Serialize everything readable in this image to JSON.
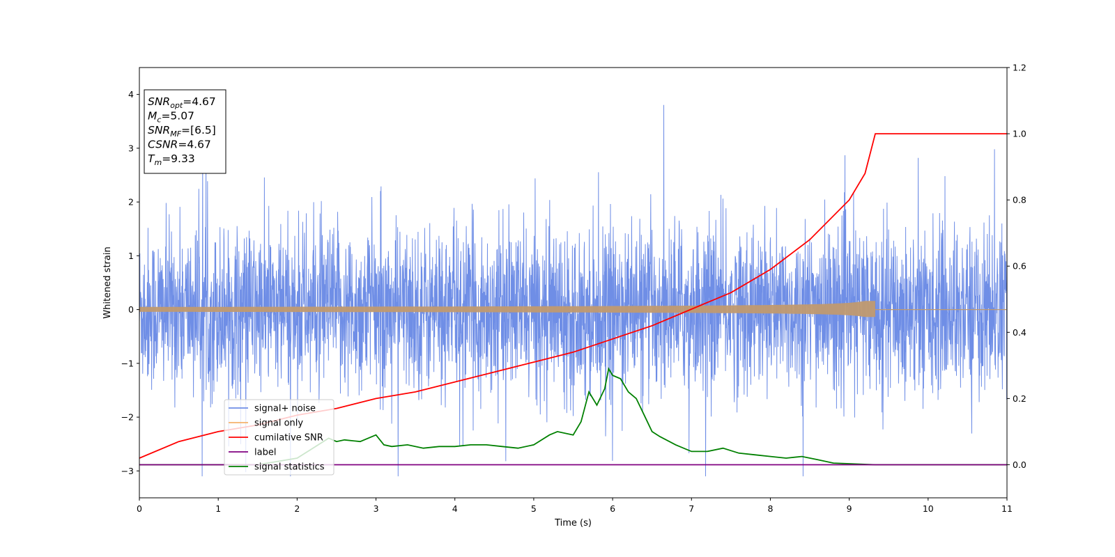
{
  "chart_data": {
    "type": "line",
    "xlabel": "Time (s)",
    "ylabel": "Whitened strain",
    "xlim": [
      0,
      11
    ],
    "ylim": [
      -3.5,
      4.5
    ],
    "y2lim": [
      -0.1,
      1.2
    ],
    "x_ticks": [
      "0",
      "1",
      "2",
      "3",
      "4",
      "5",
      "6",
      "7",
      "8",
      "9",
      "10",
      "11"
    ],
    "y_ticks": [
      "−3",
      "−2",
      "−1",
      "0",
      "1",
      "2",
      "3",
      "4"
    ],
    "y2_ticks": [
      "0.0",
      "0.2",
      "0.4",
      "0.6",
      "0.8",
      "1.0",
      "1.2"
    ],
    "grid": false,
    "legend_position": "lower-left",
    "info_box": {
      "lines": [
        {
          "name": "SNR",
          "sub": "opt",
          "value": "=4.67"
        },
        {
          "name": "M",
          "sub": "c",
          "value": "=5.07"
        },
        {
          "name": "SNR",
          "sub": "MF",
          "value": "=[6.5]"
        },
        {
          "name": "CSNR",
          "sub": "",
          "value": "=4.67"
        },
        {
          "name": "T",
          "sub": "m",
          "value": "=9.33"
        }
      ]
    },
    "series": [
      {
        "name": "signal+ noise",
        "axis": "left",
        "color": "#6f8ee6",
        "note_values": "random noise, std approx 0.9, range approx -3.1 to 4.2 over t=0..11"
      },
      {
        "name": "signal only",
        "axis": "left",
        "color": "#f4b26b",
        "merge_time": 9.33,
        "peak_amplitude": 0.45
      },
      {
        "name": "cumilative SNR",
        "axis": "right",
        "color": "#ff0000",
        "x": [
          0,
          0.5,
          1,
          1.5,
          2,
          2.5,
          3,
          3.5,
          4,
          4.5,
          5,
          5.5,
          6,
          6.5,
          7,
          7.5,
          8,
          8.5,
          9,
          9.2,
          9.33,
          11
        ],
        "values": [
          0.02,
          0.07,
          0.1,
          0.12,
          0.15,
          0.17,
          0.2,
          0.22,
          0.25,
          0.28,
          0.31,
          0.34,
          0.38,
          0.42,
          0.47,
          0.52,
          0.59,
          0.68,
          0.8,
          0.88,
          1.0,
          1.0
        ]
      },
      {
        "name": "label",
        "axis": "right",
        "color": "#800080",
        "x": [
          0,
          11
        ],
        "values": [
          0,
          0
        ]
      },
      {
        "name": "signal statistics",
        "axis": "right",
        "color": "#008000",
        "x": [
          0,
          1,
          1.5,
          2,
          2.2,
          2.4,
          2.5,
          2.6,
          2.8,
          3,
          3.1,
          3.2,
          3.4,
          3.6,
          3.8,
          4,
          4.2,
          4.4,
          4.6,
          4.8,
          5,
          5.2,
          5.3,
          5.5,
          5.6,
          5.7,
          5.8,
          5.9,
          5.95,
          6,
          6.1,
          6.2,
          6.3,
          6.4,
          6.5,
          6.6,
          6.8,
          7,
          7.2,
          7.4,
          7.6,
          7.8,
          8,
          8.2,
          8.4,
          8.6,
          8.8,
          9,
          9.33,
          10,
          11
        ],
        "values": [
          0.0,
          0.0,
          0.0,
          0.02,
          0.05,
          0.08,
          0.07,
          0.075,
          0.07,
          0.09,
          0.06,
          0.055,
          0.06,
          0.05,
          0.055,
          0.055,
          0.06,
          0.06,
          0.055,
          0.05,
          0.06,
          0.09,
          0.1,
          0.09,
          0.13,
          0.22,
          0.18,
          0.23,
          0.29,
          0.27,
          0.26,
          0.22,
          0.2,
          0.15,
          0.1,
          0.085,
          0.06,
          0.04,
          0.04,
          0.05,
          0.035,
          0.03,
          0.025,
          0.02,
          0.025,
          0.015,
          0.005,
          0.003,
          0.0,
          0.0,
          0.0
        ]
      }
    ]
  }
}
